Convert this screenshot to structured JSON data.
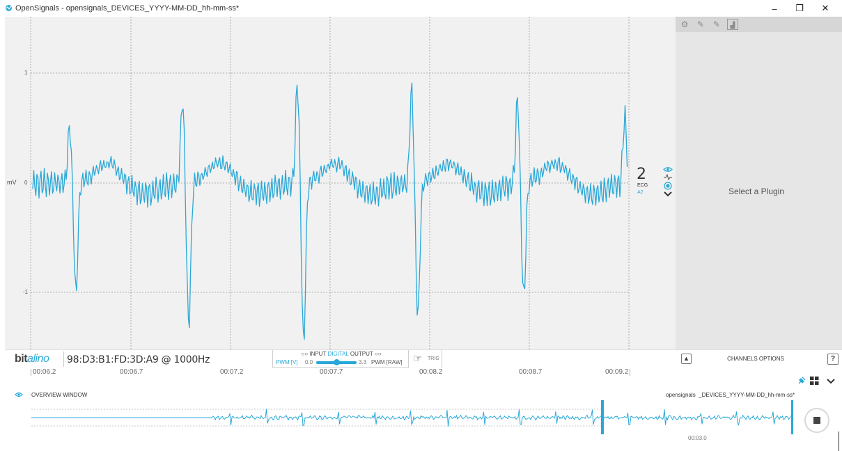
{
  "window": {
    "title": "OpenSignals - opensignals_DEVICES_YYYY-MM-DD_hh-mm-ss*",
    "minimize_glyph": "–",
    "restore_glyph": "❐",
    "close_glyph": "✕"
  },
  "plot": {
    "y_unit": "mV",
    "y_ticks": [
      "1",
      "0",
      "-1"
    ],
    "channel_number": "2",
    "channel_type": "ECG",
    "channel_port": "A2",
    "trace_color": "#29a8d8",
    "chart_data": {
      "type": "line",
      "series": [
        {
          "name": "ECG A2"
        }
      ],
      "ylabel": "mV",
      "ylim": [
        -1.55,
        1.35
      ],
      "x_ticks": [
        "00:06.2",
        "00:06.7",
        "00:07.2",
        "00:07.7",
        "00:08.2",
        "00:08.7",
        "00:09.2"
      ],
      "r_peaks_mV": [
        0.52,
        0.75,
        0.9,
        0.86,
        0.78,
        0.6
      ],
      "s_troughs_mV": [
        -1.0,
        -1.3,
        -1.45,
        -1.2,
        -1.05
      ]
    }
  },
  "plugin_panel": {
    "toolbar_icons": [
      "gear-icon",
      "plug-icon",
      "plug-icon",
      "chart-icon"
    ],
    "placeholder": "Select a Plugin"
  },
  "device_bar": {
    "logo_prefix": "bit",
    "logo_suffix": "alino",
    "mac_rate": "98:D3:B1:FD:3D:A9 @ 1000Hz",
    "io_left_circles": "○○",
    "io_input": "INPUT",
    "io_digital": "DIGITAL",
    "io_output": "OUTPUT",
    "io_right_circles": "○○",
    "pwm_left": "PWM [V]",
    "pwm_min": "0.0",
    "pwm_max": "3.3",
    "pwm_right": "PWM [RAW]",
    "pwm_level": 0.5,
    "trig": "TRIG"
  },
  "channels_options": {
    "label": "CHANNELS OPTIONS",
    "help": "?"
  },
  "time_axis": [
    "00:06.2",
    "00:06.7",
    "00:07.2",
    "00:07.7",
    "00:08.2",
    "00:08.7",
    "00:09.2"
  ],
  "overview": {
    "label": "OVERVIEW WINDOW",
    "file_prefix": "opensignals",
    "file_suffix": "_DEVICES_YYYY-MM-DD_hh-mm-ss*",
    "window_time": "00:03.0"
  }
}
